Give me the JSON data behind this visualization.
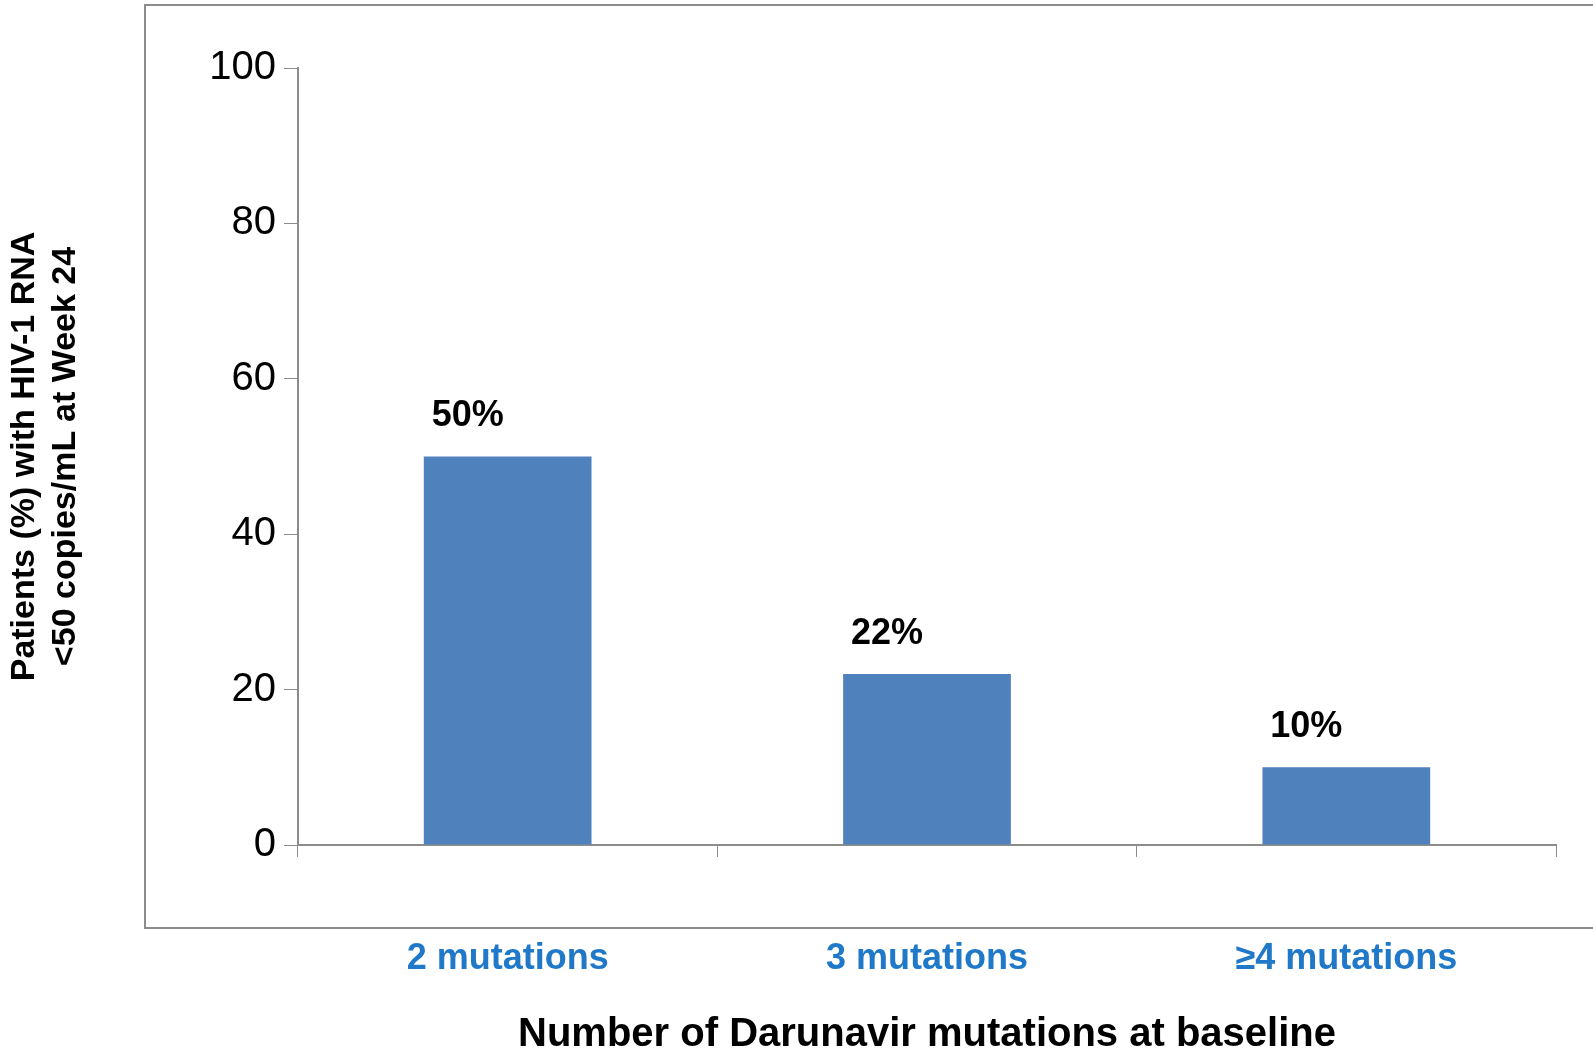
{
  "chart_data": {
    "type": "bar",
    "xlabel": "Number of Darunavir mutations at baseline",
    "ylabel": "Patients (%) with HIV-1 RNA\n<50 copies/mL at Week 24",
    "categories": [
      "2 mutations",
      "3 mutations",
      "≥4 mutations"
    ],
    "values": [
      50,
      22,
      10
    ],
    "value_labels": [
      "50%",
      "22%",
      "10%"
    ],
    "color": "#4f81bd",
    "ylim": [
      0,
      100
    ],
    "yticks": [
      0,
      20,
      40,
      60,
      80,
      100
    ]
  }
}
